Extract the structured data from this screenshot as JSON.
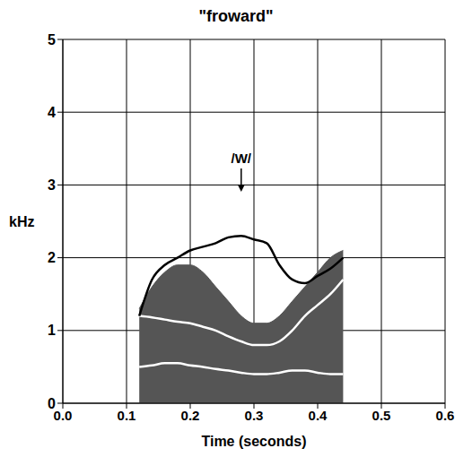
{
  "chart_data": {
    "type": "line",
    "title": "\"froward\"",
    "x_label": "Time (seconds)",
    "y_label": "kHz",
    "x": [
      0.12,
      0.14,
      0.16,
      0.18,
      0.2,
      0.22,
      0.24,
      0.26,
      0.28,
      0.3,
      0.32,
      0.34,
      0.36,
      0.38,
      0.4,
      0.42,
      0.44
    ],
    "series": [
      {
        "type": "area",
        "color": "#555555",
        "values": [
          1.3,
          1.6,
          1.8,
          1.9,
          1.9,
          1.8,
          1.6,
          1.4,
          1.2,
          1.1,
          1.1,
          1.2,
          1.4,
          1.6,
          1.8,
          2.0,
          2.1
        ]
      },
      {
        "type": "line",
        "color": "#ffffff",
        "values": [
          0.5,
          0.52,
          0.55,
          0.55,
          0.52,
          0.5,
          0.47,
          0.45,
          0.42,
          0.4,
          0.4,
          0.42,
          0.45,
          0.45,
          0.42,
          0.4,
          0.4
        ]
      },
      {
        "type": "line",
        "color": "#ffffff",
        "values": [
          1.2,
          1.18,
          1.15,
          1.12,
          1.1,
          1.05,
          1.0,
          0.92,
          0.85,
          0.8,
          0.8,
          0.85,
          1.0,
          1.2,
          1.35,
          1.5,
          1.7
        ]
      },
      {
        "type": "line",
        "color": "#000000",
        "values": [
          1.2,
          1.7,
          1.9,
          2.0,
          2.1,
          2.15,
          2.2,
          2.28,
          2.3,
          2.25,
          2.2,
          1.9,
          1.7,
          1.65,
          1.75,
          1.85,
          2.0
        ]
      }
    ],
    "annotations": [
      {
        "text": "/W/",
        "x": 0.28,
        "y": 3.3
      }
    ],
    "xlim": [
      0,
      0.6
    ],
    "xticks": [
      {
        "value": 0,
        "label": "0.0"
      },
      0.1,
      0.2,
      0.3,
      0.4,
      0.5,
      0.6
    ],
    "ylim": [
      0,
      5
    ],
    "yticks": [
      0,
      1,
      2,
      3,
      4,
      5
    ],
    "grid": true
  }
}
